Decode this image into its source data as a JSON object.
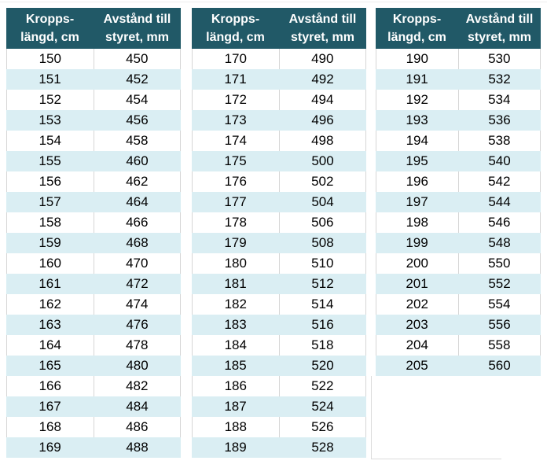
{
  "colors": {
    "page-bg": "#ffffff",
    "header-bg": "#215967",
    "header-text": "#ffffff",
    "stripe": "#daeef3",
    "gridline": "#d6d6d6",
    "text": "#000000"
  },
  "tables": [
    {
      "header": {
        "col1_line1": "Kropps-",
        "col1_line2": "längd, cm",
        "col2_line1": "Avstånd till",
        "col2_line2": "styret, mm"
      },
      "rows": [
        [
          "150",
          "450"
        ],
        [
          "151",
          "452"
        ],
        [
          "152",
          "454"
        ],
        [
          "153",
          "456"
        ],
        [
          "154",
          "458"
        ],
        [
          "155",
          "460"
        ],
        [
          "156",
          "462"
        ],
        [
          "157",
          "464"
        ],
        [
          "158",
          "466"
        ],
        [
          "159",
          "468"
        ],
        [
          "160",
          "470"
        ],
        [
          "161",
          "472"
        ],
        [
          "162",
          "474"
        ],
        [
          "163",
          "476"
        ],
        [
          "164",
          "478"
        ],
        [
          "165",
          "480"
        ],
        [
          "166",
          "482"
        ],
        [
          "167",
          "484"
        ],
        [
          "168",
          "486"
        ],
        [
          "169",
          "488"
        ]
      ]
    },
    {
      "header": {
        "col1_line1": "Kropps-",
        "col1_line2": "längd, cm",
        "col2_line1": "Avstånd till",
        "col2_line2": "styret, mm"
      },
      "rows": [
        [
          "170",
          "490"
        ],
        [
          "171",
          "492"
        ],
        [
          "172",
          "494"
        ],
        [
          "173",
          "496"
        ],
        [
          "174",
          "498"
        ],
        [
          "175",
          "500"
        ],
        [
          "176",
          "502"
        ],
        [
          "177",
          "504"
        ],
        [
          "178",
          "506"
        ],
        [
          "179",
          "508"
        ],
        [
          "180",
          "510"
        ],
        [
          "181",
          "512"
        ],
        [
          "182",
          "514"
        ],
        [
          "183",
          "516"
        ],
        [
          "184",
          "518"
        ],
        [
          "185",
          "520"
        ],
        [
          "186",
          "522"
        ],
        [
          "187",
          "524"
        ],
        [
          "188",
          "526"
        ],
        [
          "189",
          "528"
        ]
      ]
    },
    {
      "header": {
        "col1_line1": "Kropps-",
        "col1_line2": "längd, cm",
        "col2_line1": "Avstånd till",
        "col2_line2": "styret, mm"
      },
      "rows": [
        [
          "190",
          "530"
        ],
        [
          "191",
          "532"
        ],
        [
          "192",
          "534"
        ],
        [
          "193",
          "536"
        ],
        [
          "194",
          "538"
        ],
        [
          "195",
          "540"
        ],
        [
          "196",
          "542"
        ],
        [
          "197",
          "544"
        ],
        [
          "198",
          "546"
        ],
        [
          "199",
          "548"
        ],
        [
          "200",
          "550"
        ],
        [
          "201",
          "552"
        ],
        [
          "202",
          "554"
        ],
        [
          "203",
          "556"
        ],
        [
          "204",
          "558"
        ],
        [
          "205",
          "560"
        ]
      ]
    }
  ]
}
